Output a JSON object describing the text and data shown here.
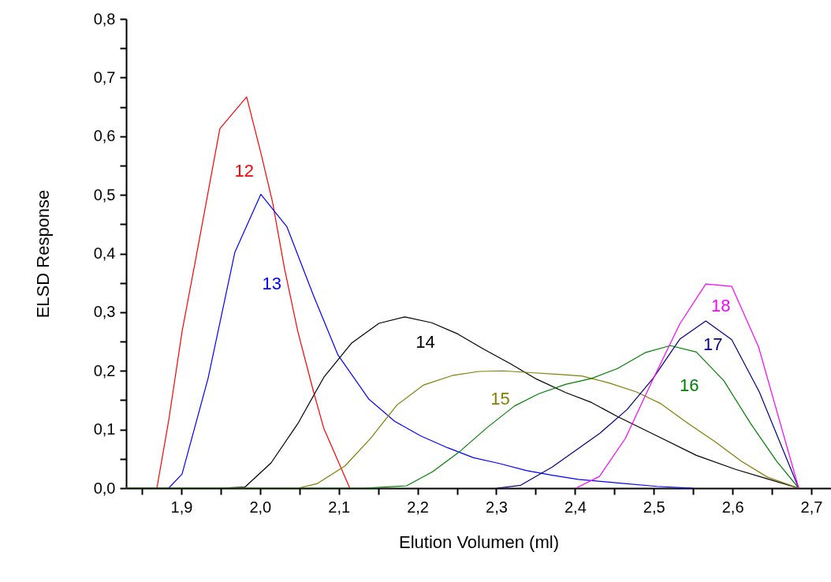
{
  "chart_data": {
    "type": "line",
    "xlabel": "Elution Volumen (ml)",
    "ylabel": "ELSD Response",
    "xlim": [
      1.83,
      2.725
    ],
    "ylim": [
      0,
      0.8
    ],
    "xticks": [
      {
        "value": 1.85,
        "label": null
      },
      {
        "value": 1.9,
        "label": "1,9"
      },
      {
        "value": 1.95,
        "label": null
      },
      {
        "value": 2.0,
        "label": "2,0"
      },
      {
        "value": 2.05,
        "label": null
      },
      {
        "value": 2.1,
        "label": "2,1"
      },
      {
        "value": 2.15,
        "label": null
      },
      {
        "value": 2.2,
        "label": "2,2"
      },
      {
        "value": 2.25,
        "label": null
      },
      {
        "value": 2.3,
        "label": "2,3"
      },
      {
        "value": 2.35,
        "label": null
      },
      {
        "value": 2.4,
        "label": "2,4"
      },
      {
        "value": 2.45,
        "label": null
      },
      {
        "value": 2.5,
        "label": "2,5"
      },
      {
        "value": 2.55,
        "label": null
      },
      {
        "value": 2.6,
        "label": "2,6"
      },
      {
        "value": 2.65,
        "label": null
      },
      {
        "value": 2.7,
        "label": "2,7"
      }
    ],
    "yticks": [
      {
        "value": 0,
        "label": "0,0"
      },
      {
        "value": 0.05,
        "label": null
      },
      {
        "value": 0.1,
        "label": "0,1"
      },
      {
        "value": 0.15,
        "label": null
      },
      {
        "value": 0.2,
        "label": "0,2"
      },
      {
        "value": 0.25,
        "label": null
      },
      {
        "value": 0.3,
        "label": "0,3"
      },
      {
        "value": 0.35,
        "label": null
      },
      {
        "value": 0.4,
        "label": "0,4"
      },
      {
        "value": 0.45,
        "label": null
      },
      {
        "value": 0.5,
        "label": "0,5"
      },
      {
        "value": 0.55,
        "label": null
      },
      {
        "value": 0.6,
        "label": "0,6"
      },
      {
        "value": 0.65,
        "label": null
      },
      {
        "value": 0.7,
        "label": "0,7"
      },
      {
        "value": 0.75,
        "label": null
      },
      {
        "value": 0.8,
        "label": "0,8"
      }
    ],
    "grid": false,
    "legend": false,
    "marker": "none",
    "line_style": "solid",
    "series": [
      {
        "color": "#ff0000",
        "x": [
          1.83,
          1.869,
          1.884,
          1.901,
          1.918,
          1.949,
          1.983,
          2.001,
          2.016,
          2.031,
          2.048,
          2.068,
          2.081,
          2.114
        ],
        "values": [
          0,
          0,
          0.115,
          0.267,
          0.388,
          0.613,
          0.667,
          0.572,
          0.487,
          0.375,
          0.267,
          0.164,
          0.102,
          0
        ]
      },
      {
        "color": "#0000ff",
        "x": [
          1.83,
          1.884,
          1.901,
          1.934,
          1.968,
          2.001,
          2.034,
          2.068,
          2.099,
          2.138,
          2.171,
          2.204,
          2.238,
          2.271,
          2.304,
          2.338,
          2.371,
          2.404,
          2.454,
          2.504,
          2.55
        ],
        "values": [
          0,
          0,
          0.024,
          0.187,
          0.402,
          0.501,
          0.446,
          0.328,
          0.227,
          0.152,
          0.114,
          0.089,
          0.069,
          0.052,
          0.042,
          0.03,
          0.022,
          0.015,
          0.009,
          0.003,
          0
        ]
      },
      {
        "color": "#000000",
        "x": [
          1.83,
          1.948,
          1.981,
          2.014,
          2.048,
          2.081,
          2.116,
          2.151,
          2.184,
          2.218,
          2.251,
          2.284,
          2.318,
          2.351,
          2.388,
          2.421,
          2.454,
          2.504,
          2.554,
          2.604,
          2.644,
          2.684
        ],
        "values": [
          0,
          0,
          0.002,
          0.043,
          0.11,
          0.189,
          0.247,
          0.281,
          0.292,
          0.282,
          0.263,
          0.237,
          0.212,
          0.186,
          0.163,
          0.146,
          0.122,
          0.089,
          0.056,
          0.032,
          0.016,
          0
        ]
      },
      {
        "color": "#808000",
        "x": [
          1.83,
          2.048,
          2.073,
          2.108,
          2.141,
          2.174,
          2.208,
          2.244,
          2.278,
          2.308,
          2.344,
          2.378,
          2.409,
          2.444,
          2.478,
          2.509,
          2.544,
          2.578,
          2.611,
          2.644,
          2.684
        ],
        "values": [
          0,
          0,
          0.008,
          0.038,
          0.086,
          0.142,
          0.176,
          0.192,
          0.199,
          0.2,
          0.197,
          0.194,
          0.191,
          0.179,
          0.164,
          0.144,
          0.11,
          0.079,
          0.046,
          0.019,
          0
        ]
      },
      {
        "color": "#008000",
        "x": [
          1.83,
          2.131,
          2.186,
          2.219,
          2.254,
          2.289,
          2.323,
          2.354,
          2.388,
          2.421,
          2.454,
          2.489,
          2.521,
          2.554,
          2.589,
          2.623,
          2.656,
          2.684
        ],
        "values": [
          0,
          0,
          0.004,
          0.028,
          0.063,
          0.104,
          0.14,
          0.161,
          0.177,
          0.187,
          0.204,
          0.231,
          0.243,
          0.232,
          0.183,
          0.11,
          0.046,
          0
        ]
      },
      {
        "color": "#000080",
        "x": [
          2.301,
          2.331,
          2.371,
          2.431,
          2.466,
          2.499,
          2.533,
          2.566,
          2.599,
          2.634,
          2.684
        ],
        "values": [
          0,
          0.005,
          0.036,
          0.093,
          0.134,
          0.187,
          0.254,
          0.285,
          0.253,
          0.164,
          0
        ]
      },
      {
        "color": "#ff00ff",
        "x": [
          2.401,
          2.431,
          2.464,
          2.498,
          2.533,
          2.566,
          2.599,
          2.633,
          2.684
        ],
        "values": [
          0,
          0.02,
          0.085,
          0.183,
          0.28,
          0.348,
          0.344,
          0.241,
          0
        ]
      }
    ],
    "annotations": [
      "12",
      "13",
      "14",
      "15",
      "16",
      "17",
      "18"
    ]
  }
}
